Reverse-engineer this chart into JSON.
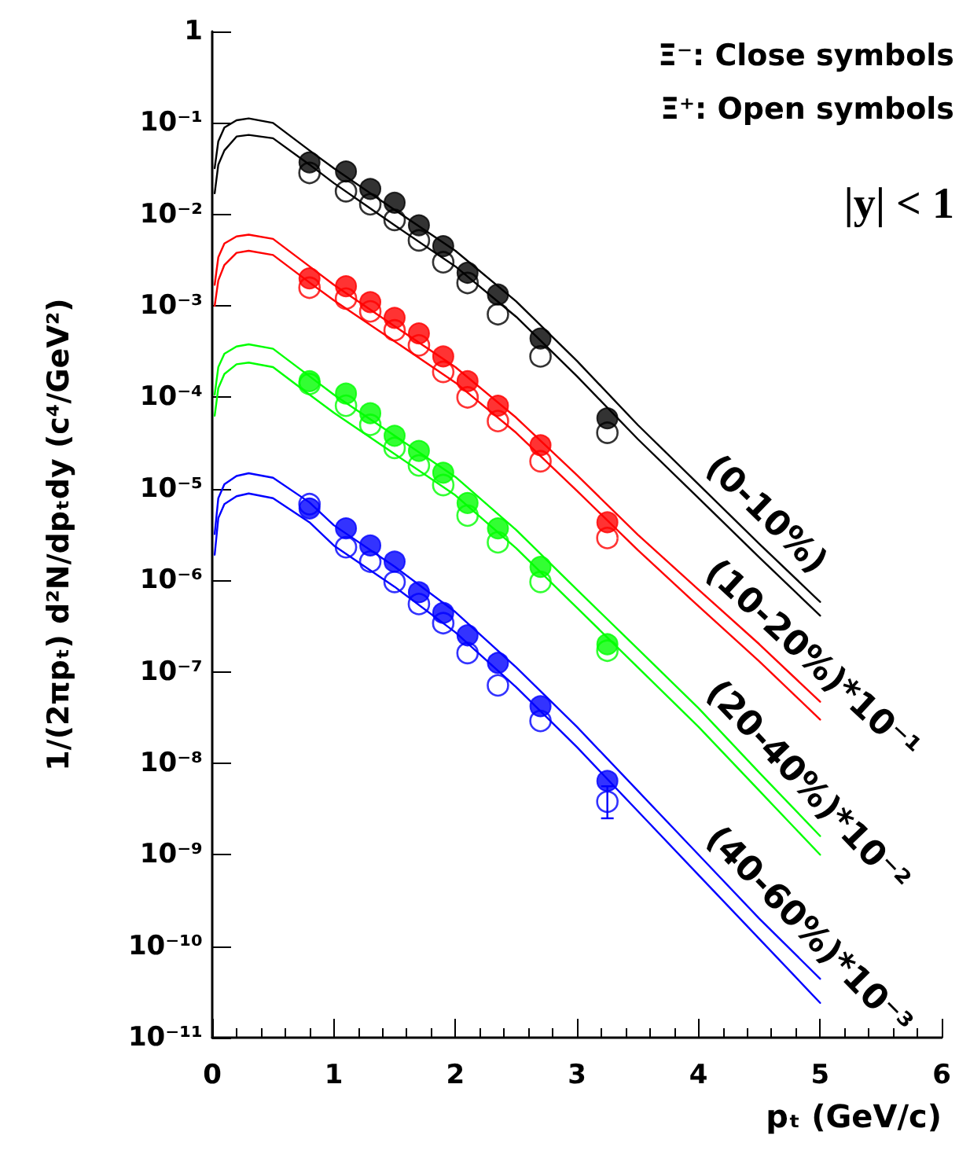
{
  "chart_data": {
    "type": "scatter",
    "xlabel": "pₜ (GeV/c)",
    "ylabel": "1/(2πpₜ) d²N/dpₜdy (c⁴/GeV²)",
    "annotations": [
      "Ξ⁻: Close symbols",
      "Ξ⁺: Open symbols",
      "|y| < 1"
    ],
    "x": [
      0.8,
      1.1,
      1.3,
      1.5,
      1.7,
      1.9,
      2.1,
      2.35,
      2.7,
      3.25
    ],
    "xlim": [
      0,
      6
    ],
    "xticks": [
      0,
      1,
      2,
      3,
      4,
      5,
      6
    ],
    "ylim": [
      1e-11,
      1
    ],
    "log": "y",
    "yticks": [
      1,
      {
        "value": 0.1,
        "label": "10⁻¹"
      },
      {
        "value": 0.01,
        "label": "10⁻²"
      },
      {
        "value": 0.001,
        "label": "10⁻³"
      },
      {
        "value": 0.0001,
        "label": "10⁻⁴"
      },
      {
        "value": 1e-05,
        "label": "10⁻⁵"
      },
      {
        "value": 1e-06,
        "label": "10⁻⁶"
      },
      {
        "value": 1e-07,
        "label": "10⁻⁷"
      },
      {
        "value": 1e-08,
        "label": "10⁻⁸"
      },
      {
        "value": 1e-09,
        "label": "10⁻⁹"
      },
      {
        "value": 1e-10,
        "label": "10⁻¹⁰"
      },
      {
        "value": 1e-11,
        "label": "10⁻¹¹"
      }
    ],
    "grid": false,
    "legend": false,
    "marker": "circle",
    "line_style": "solid",
    "series": [
      {
        "color": "#000000",
        "values": [
          0.037,
          0.0295,
          0.019,
          0.0134,
          0.0076,
          0.0045,
          0.0023,
          0.00133,
          0.00044,
          5.9e-05
        ]
      },
      {
        "color": "#000000",
        "marker": "circle-open",
        "values": [
          0.0284,
          0.0179,
          0.0129,
          0.0087,
          0.0052,
          0.003,
          0.00178,
          0.00081,
          0.00028,
          4.1e-05
        ]
      },
      {
        "color": "#ff0000",
        "values": [
          0.002,
          0.00164,
          0.0011,
          0.00074,
          0.0005,
          0.00028,
          0.00015,
          8.1e-05,
          3e-05,
          4.3e-06
        ]
      },
      {
        "color": "#ff0000",
        "marker": "circle-open",
        "values": [
          0.00158,
          0.0012,
          0.00087,
          0.00054,
          0.00037,
          0.00019,
          0.0001,
          5.5e-05,
          2e-05,
          2.9e-06
        ]
      },
      {
        "color": "#00ff00",
        "values": [
          0.00015,
          0.00011,
          6.7e-05,
          3.8e-05,
          2.6e-05,
          1.5e-05,
          7e-06,
          3.7e-06,
          1.4e-06,
          2e-07
        ]
      },
      {
        "color": "#00ff00",
        "marker": "circle-open",
        "values": [
          0.00014,
          8.1e-05,
          5e-05,
          2.8e-05,
          1.8e-05,
          1.1e-05,
          5.1e-06,
          2.6e-06,
          9.6e-07,
          1.7e-07
        ]
      },
      {
        "color": "#0000ff",
        "values": [
          6.1e-06,
          3.7e-06,
          2.4e-06,
          1.6e-06,
          7.4e-07,
          4.4e-07,
          2.5e-07,
          1.25e-07,
          4.2e-08,
          6.4e-09
        ]
      },
      {
        "color": "#0000ff",
        "marker": "circle-open",
        "values": [
          6.8e-06,
          2.3e-06,
          1.6e-06,
          9.6e-07,
          5.5e-07,
          3.4e-07,
          1.6e-07,
          7.1e-08,
          2.9e-08,
          3.8e-09
        ],
        "errors": [
          null,
          null,
          null,
          null,
          null,
          null,
          null,
          null,
          null,
          [
            2.5e-09,
            5.6e-09
          ]
        ]
      },
      {
        "type": "line",
        "marker": "none",
        "name": "(0-10%)",
        "color": "#000000",
        "x": [
          0.02,
          0.05,
          0.1,
          0.2,
          0.3,
          0.5,
          0.8,
          1.0,
          1.5,
          2.0,
          2.5,
          3.0,
          3.5,
          4.0,
          4.5,
          5.0
        ],
        "values": [
          0.032,
          0.063,
          0.089,
          0.107,
          0.112,
          0.1,
          0.05,
          0.032,
          0.0112,
          0.004,
          0.00112,
          0.00025,
          5e-05,
          1.12e-05,
          2.5e-06,
          5.8e-07
        ]
      },
      {
        "type": "line",
        "marker": "none",
        "color": "#000000",
        "x": [
          0.02,
          0.05,
          0.1,
          0.2,
          0.3,
          0.5,
          0.8,
          1.0,
          1.5,
          2.0,
          2.5,
          3.0,
          3.5,
          4.0,
          4.5,
          5.0
        ],
        "values": [
          0.017,
          0.035,
          0.05,
          0.071,
          0.074,
          0.068,
          0.035,
          0.022,
          0.0076,
          0.0027,
          0.00076,
          0.00017,
          3.5e-05,
          7.9e-06,
          1.78e-06,
          4.1e-07
        ]
      },
      {
        "type": "line",
        "marker": "none",
        "name": "(10-20%)*10⁻¹",
        "color": "#ff0000",
        "x": [
          0.02,
          0.05,
          0.1,
          0.2,
          0.3,
          0.5,
          0.8,
          1.0,
          1.5,
          2.0,
          2.5,
          3.0,
          3.5,
          4.0,
          4.5,
          5.0
        ],
        "values": [
          0.0017,
          0.0034,
          0.0048,
          0.00575,
          0.006,
          0.0054,
          0.0027,
          0.0017,
          0.0006,
          0.000214,
          6e-05,
          1.41e-05,
          3.16e-06,
          7.9e-07,
          2e-07,
          4.7e-08
        ]
      },
      {
        "type": "line",
        "marker": "none",
        "color": "#ff0000",
        "x": [
          0.02,
          0.05,
          0.1,
          0.2,
          0.3,
          0.5,
          0.8,
          1.0,
          1.5,
          2.0,
          2.5,
          3.0,
          3.5,
          4.0,
          4.5,
          5.0
        ],
        "values": [
          0.001,
          0.0019,
          0.0028,
          0.0038,
          0.004,
          0.0036,
          0.0018,
          0.00115,
          0.00041,
          0.000145,
          4.1e-05,
          9.5e-06,
          2.14e-06,
          5.2e-07,
          1.3e-07,
          3e-08
        ]
      },
      {
        "type": "line",
        "marker": "none",
        "name": "(20-40%)*10⁻²",
        "color": "#00ff00",
        "x": [
          0.02,
          0.05,
          0.1,
          0.2,
          0.3,
          0.5,
          0.8,
          1.0,
          1.5,
          2.0,
          2.5,
          3.0,
          3.5,
          4.0,
          4.5,
          5.0
        ],
        "values": [
          0.000107,
          0.000214,
          0.0003,
          0.00036,
          0.00038,
          0.00034,
          0.00017,
          0.000107,
          3.8e-05,
          1.35e-05,
          3.55e-06,
          7.9e-07,
          1.78e-07,
          4e-08,
          7.9e-09,
          1.6e-09
        ]
      },
      {
        "type": "line",
        "marker": "none",
        "color": "#00ff00",
        "x": [
          0.02,
          0.05,
          0.1,
          0.2,
          0.3,
          0.5,
          0.8,
          1.0,
          1.5,
          2.0,
          2.5,
          3.0,
          3.5,
          4.0,
          4.5,
          5.0
        ],
        "values": [
          6.3e-05,
          0.000126,
          0.00018,
          0.00023,
          0.00024,
          0.000214,
          0.000107,
          6.8e-05,
          2.4e-05,
          8.5e-06,
          2.24e-06,
          5e-07,
          1.12e-07,
          2.5e-08,
          5e-09,
          1e-09
        ]
      },
      {
        "type": "line",
        "marker": "none",
        "name": "(40-60%)*10⁻³",
        "color": "#0000ff",
        "x": [
          0.02,
          0.05,
          0.1,
          0.2,
          0.3,
          0.5,
          0.8,
          1.0,
          1.5,
          2.0,
          2.5,
          3.0,
          3.5,
          4.0,
          4.5,
          5.0
        ],
        "values": [
          3.2e-06,
          7.9e-06,
          1.12e-05,
          1.38e-05,
          1.48e-05,
          1.32e-05,
          7.1e-06,
          4e-06,
          1.41e-06,
          4.5e-07,
          1.12e-07,
          2.5e-08,
          5e-09,
          1e-09,
          2e-10,
          4.4e-11
        ]
      },
      {
        "type": "line",
        "marker": "none",
        "color": "#0000ff",
        "x": [
          0.02,
          0.05,
          0.1,
          0.2,
          0.3,
          0.5,
          0.8,
          1.0,
          1.5,
          2.0,
          2.5,
          3.0,
          3.5,
          4.0,
          4.5,
          5.0
        ],
        "values": [
          1.9e-06,
          4.8e-06,
          6.8e-06,
          8.3e-06,
          8.9e-06,
          7.9e-06,
          4.3e-06,
          2.4e-06,
          8.5e-07,
          2.7e-07,
          6.8e-08,
          1.5e-08,
          3e-09,
          6e-10,
          1.2e-10,
          2.4e-11
        ]
      }
    ]
  }
}
